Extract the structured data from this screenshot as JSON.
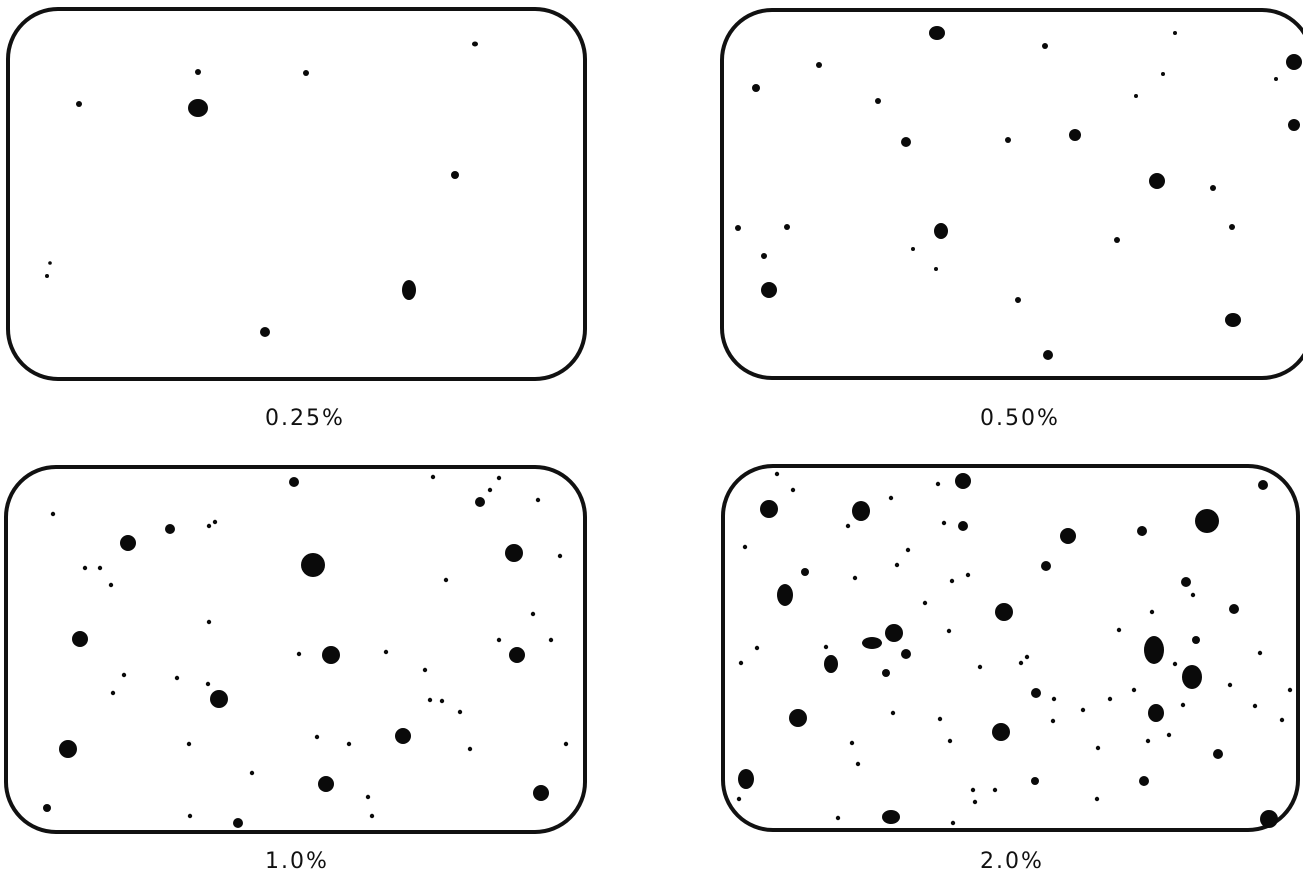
{
  "panels": [
    {
      "label": "0.25%"
    },
    {
      "label": "0.50%"
    },
    {
      "label": "1.0%"
    },
    {
      "label": "2.0%"
    }
  ]
}
